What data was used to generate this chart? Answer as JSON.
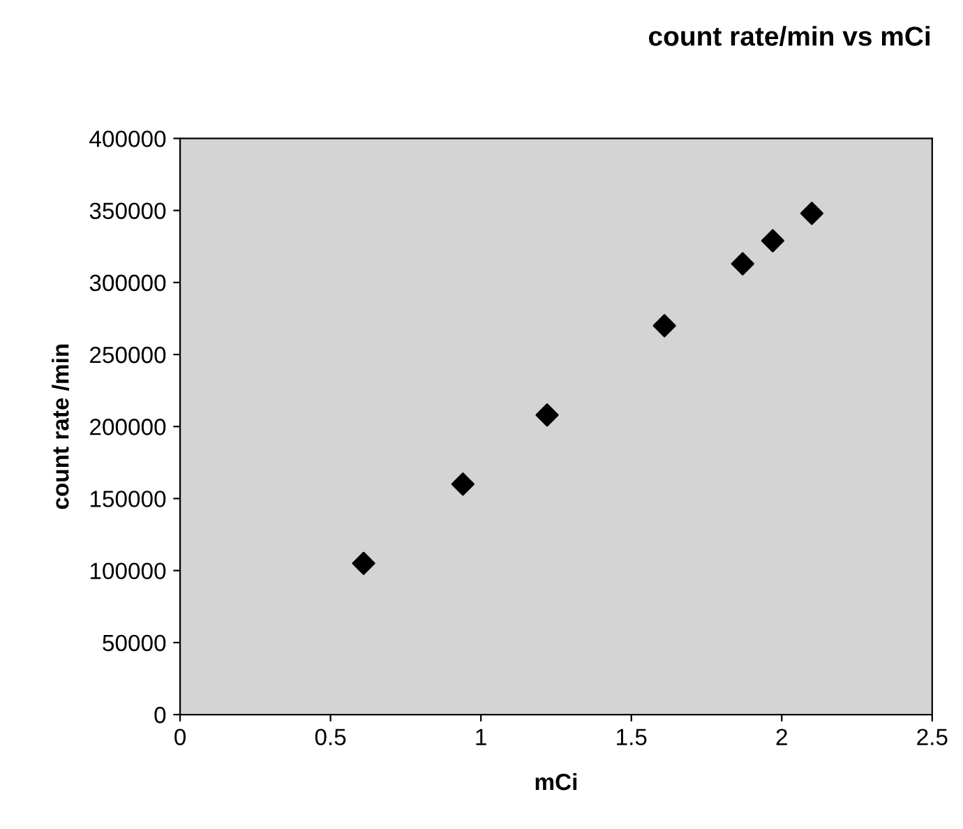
{
  "chart_data": {
    "type": "scatter",
    "title": "count rate/min vs mCi",
    "xlabel": "mCi",
    "ylabel": "count rate /min",
    "x": [
      0.61,
      0.94,
      1.22,
      1.61,
      1.87,
      1.97,
      2.1
    ],
    "series": [
      {
        "color": "#000000",
        "values": [
          105000,
          160000,
          208000,
          270000,
          313000,
          329000,
          348000
        ]
      }
    ],
    "marker": "diamond",
    "xlim": [
      0,
      2.5
    ],
    "xticks": [
      0,
      0.5,
      1,
      1.5,
      2,
      2.5
    ],
    "ylim": [
      0,
      400000
    ],
    "yticks": [
      0,
      50000,
      100000,
      150000,
      200000,
      250000,
      300000,
      350000,
      400000
    ],
    "grid": false,
    "legend": false
  }
}
